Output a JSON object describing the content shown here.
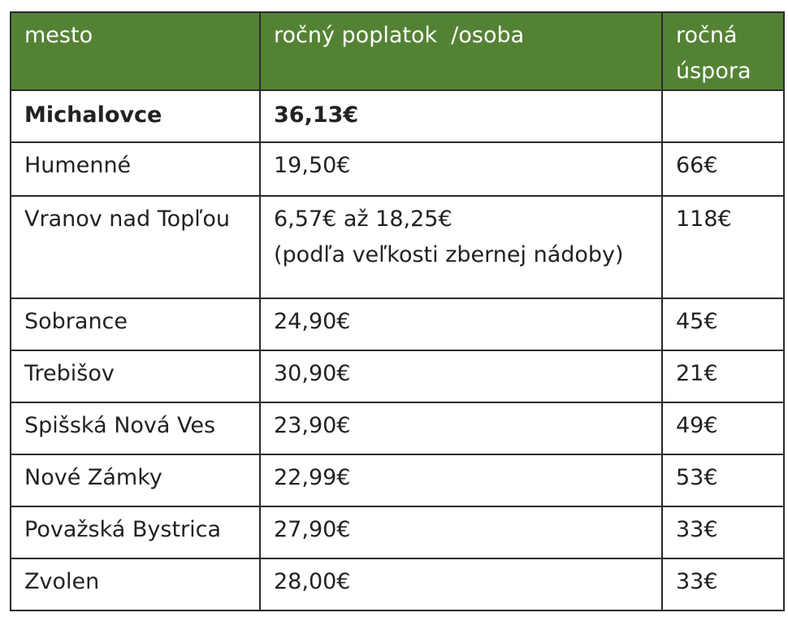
{
  "table": {
    "headers": [
      "mesto",
      "ročný poplatok  /osoba",
      "ročná\núspora"
    ],
    "header_lines": {
      "col3_line1": "ročná",
      "col3_line2": "úspora"
    },
    "rows": [
      {
        "city": "Michalovce",
        "fee": "36,13€",
        "saving": "",
        "bold": true
      },
      {
        "city": "Humenné",
        "fee": "19,50€",
        "saving": "66€"
      },
      {
        "city": "Vranov nad Topľou",
        "fee": "6,57€ až 18,25€",
        "fee_note": "(podľa veľkosti zbernej nádoby)",
        "saving": "118€"
      },
      {
        "city": "Sobrance",
        "fee": "24,90€",
        "saving": "45€"
      },
      {
        "city": "Trebišov",
        "fee": "30,90€",
        "saving": "21€"
      },
      {
        "city": "Spišská Nová Ves",
        "fee": "23,90€",
        "saving": "49€"
      },
      {
        "city": "Nové Zámky",
        "fee": "22,99€",
        "saving": "53€"
      },
      {
        "city": "Považská Bystrica",
        "fee": "27,90€",
        "saving": "33€"
      },
      {
        "city": "Zvolen",
        "fee": "28,00€",
        "saving": "33€"
      }
    ],
    "colors": {
      "header_bg": "#548235",
      "header_text": "#ffffff",
      "border": "#2b2b2b",
      "text": "#222222"
    }
  }
}
